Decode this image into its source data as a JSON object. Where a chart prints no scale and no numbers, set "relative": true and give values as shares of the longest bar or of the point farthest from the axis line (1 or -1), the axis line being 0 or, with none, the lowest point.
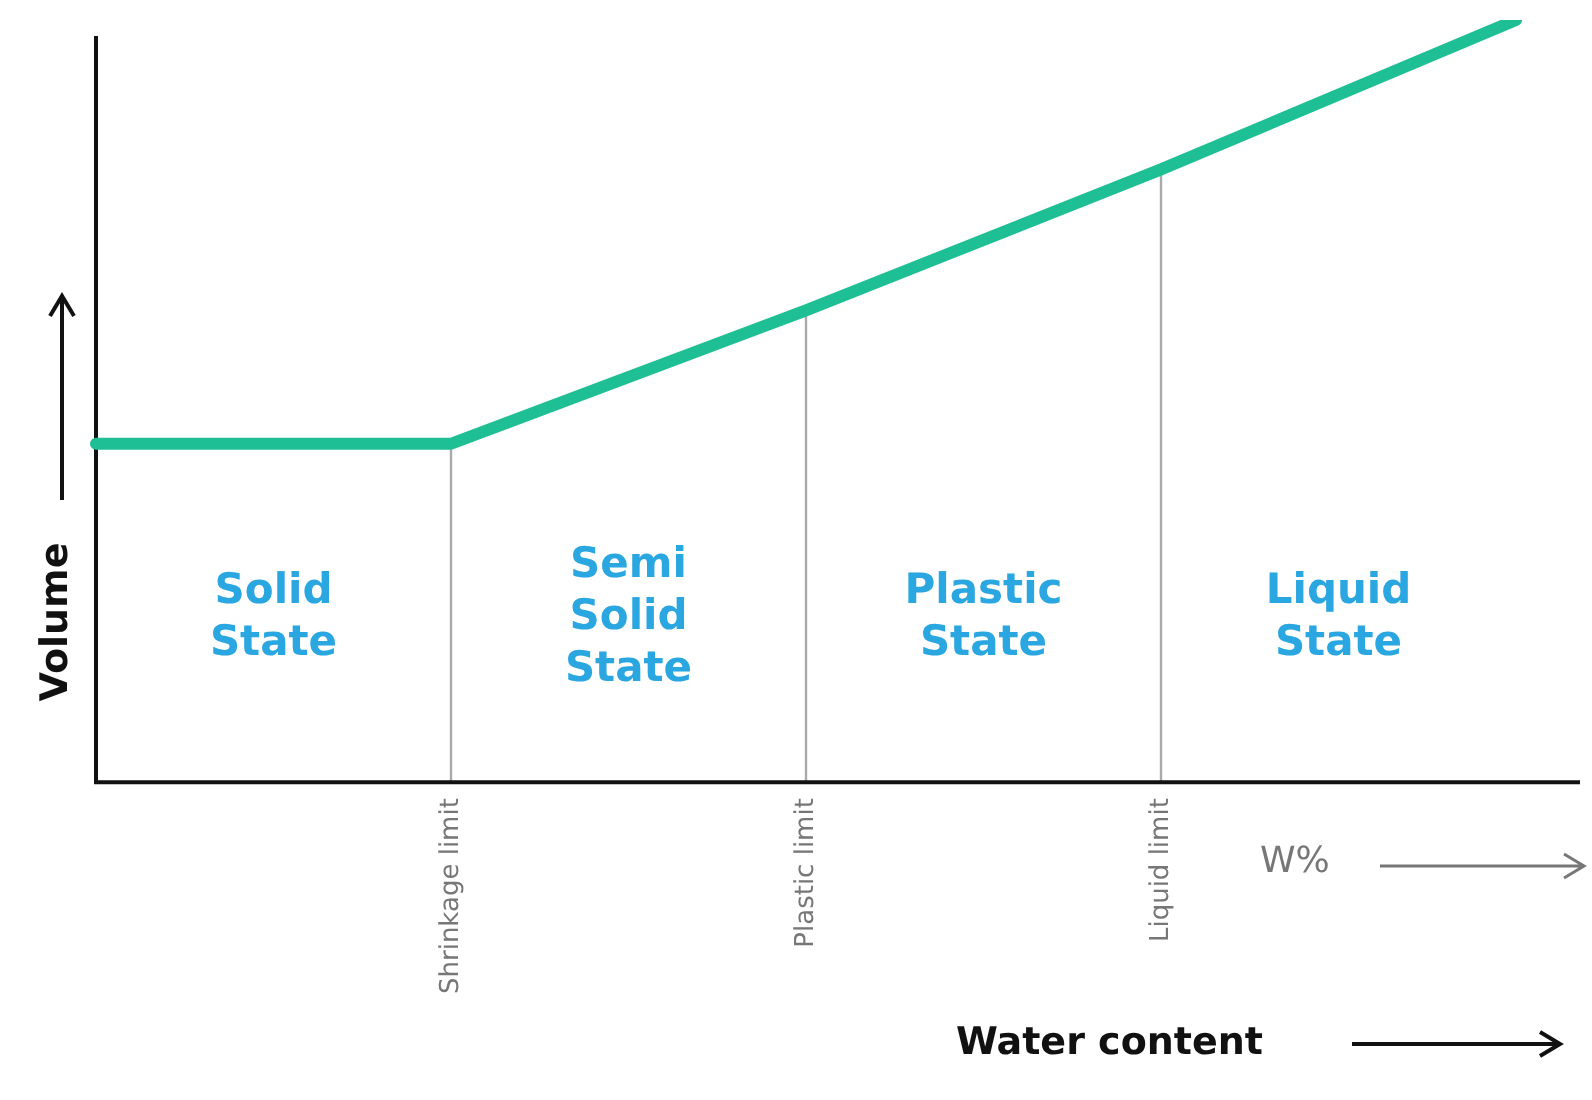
{
  "chart_data": {
    "type": "line",
    "relative": true,
    "categories": [
      null,
      "Shrinkage limit",
      "Plastic limit",
      "Liquid limit",
      null
    ],
    "series": [
      {
        "color": "#1fbf95",
        "values": [
          0.444,
          0.444,
          0.619,
          0.804,
          1
        ]
      }
    ],
    "ylabel": "Volume",
    "xlabel": "Water content",
    "ref_lines": [
      {
        "axis": "x",
        "value": "Shrinkage limit",
        "color": "#aaaaaa"
      },
      {
        "axis": "x",
        "value": "Plastic limit",
        "color": "#aaaaaa"
      },
      {
        "axis": "x",
        "value": "Liquid limit",
        "color": "#aaaaaa"
      }
    ],
    "annotations": [
      "Solid State",
      "Semi Solid State",
      "Plastic State",
      "Liquid State",
      "W%"
    ],
    "grid": false,
    "legend": false,
    "marker": "none",
    "line_style": "solid"
  }
}
